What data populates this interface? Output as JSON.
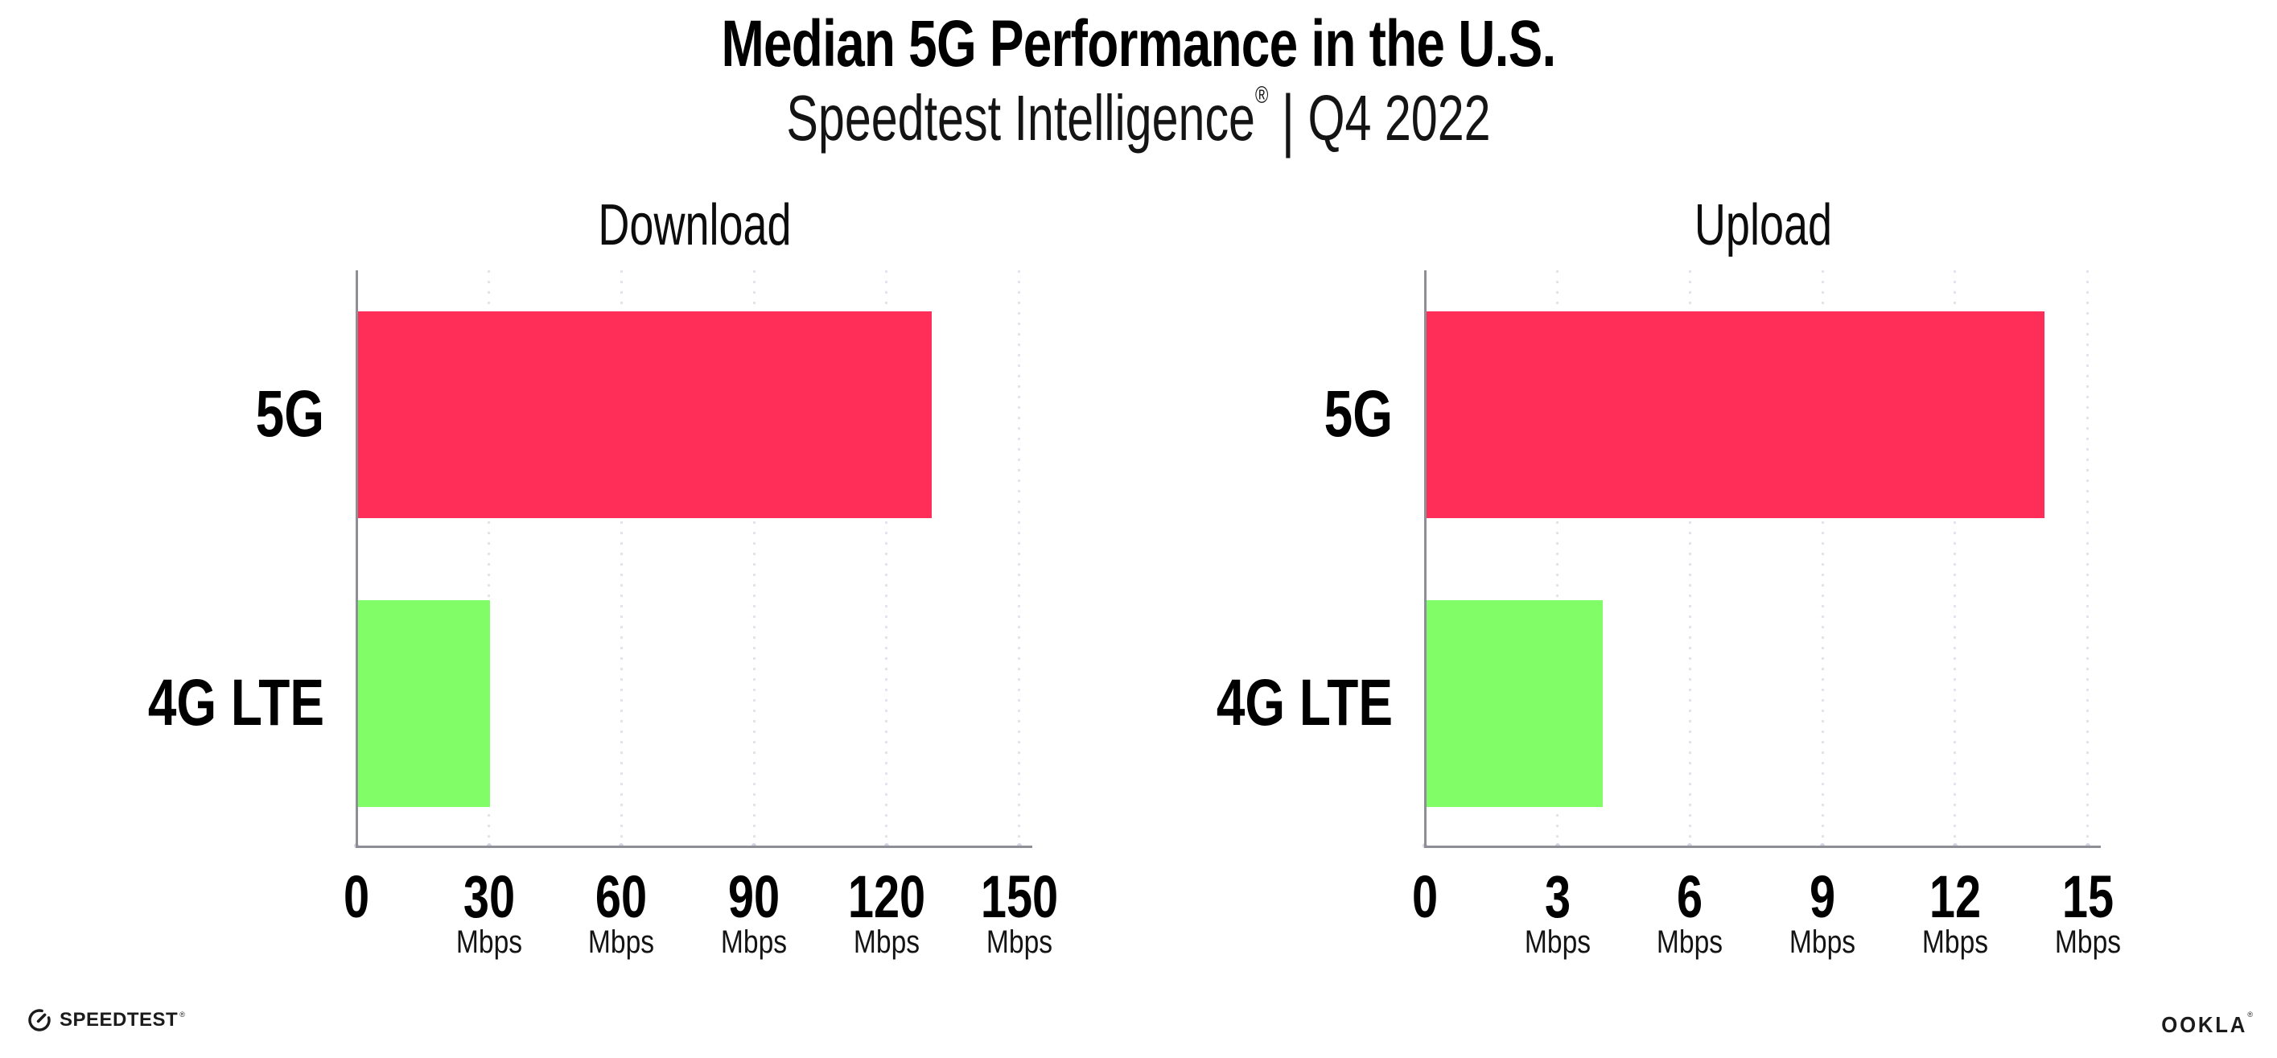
{
  "header": {
    "title": "Median 5G Performance in the U.S.",
    "subtitle_brand": "Speedtest Intelligence",
    "subtitle_reg": "®",
    "subtitle_separator": "|",
    "subtitle_period": "Q4 2022"
  },
  "chart_data": {
    "type": "bar",
    "orientation": "horizontal",
    "grid": "dotted-vertical-gridlines",
    "legend_position": "none",
    "charts": [
      {
        "title": "Download",
        "categories": [
          "5G",
          "4G LTE"
        ],
        "values": [
          130,
          30
        ],
        "unit": "Mbps",
        "xticks": [
          0,
          30,
          60,
          90,
          120,
          150
        ],
        "xlim": [
          0,
          150
        ]
      },
      {
        "title": "Upload",
        "categories": [
          "5G",
          "4G LTE"
        ],
        "values": [
          14,
          4
        ],
        "unit": "Mbps",
        "xticks": [
          0,
          3,
          6,
          9,
          12,
          15
        ],
        "xlim": [
          0,
          15
        ]
      }
    ],
    "series_colors": {
      "5G": "#FF2E58",
      "4G LTE": "#80FD67"
    },
    "axis_color": "#8E8E97",
    "gridline_color": "#E3E3EE"
  },
  "footer": {
    "speedtest": "SPEEDTEST",
    "speedtest_reg": "®",
    "ookla": "OOKLA",
    "ookla_reg": "®"
  }
}
